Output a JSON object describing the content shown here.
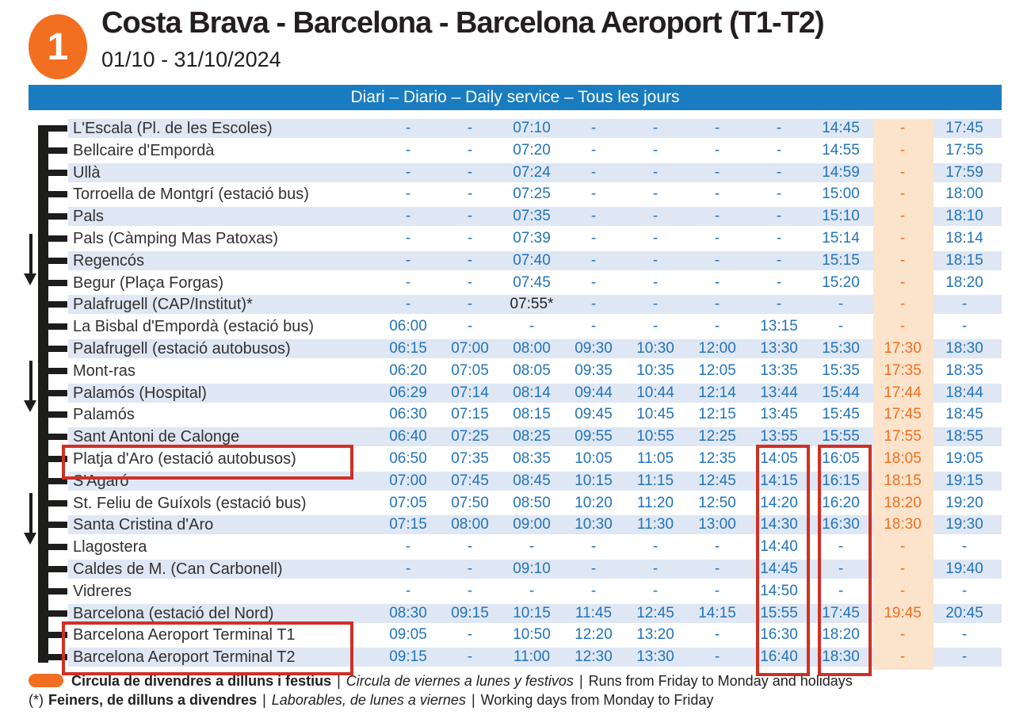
{
  "header": {
    "route_number": "1",
    "title": "Costa Brava - Barcelona - Barcelona Aeroport (T1-T2)",
    "date_range": "01/10 - 31/10/2024"
  },
  "service_bar": {
    "label": "Diari – Diario – Daily service – Tous les jours"
  },
  "colors": {
    "accent_blue": "#1a7cc0",
    "time_blue": "#2274bc",
    "row_stripe": "#dfe7f4",
    "orange": "#f26f21",
    "highlight_column_bg": "#fce3cb",
    "annotation_red": "#cf3026",
    "text_black": "#231f20"
  },
  "timetable": {
    "highlight_column_index": 8,
    "rows": [
      {
        "stop": "L'Escala (Pl. de les Escoles)",
        "times": [
          "-",
          "-",
          "07:10",
          "-",
          "-",
          "-",
          "-",
          "14:45",
          "-",
          "17:45"
        ]
      },
      {
        "stop": "Bellcaire d'Empordà",
        "times": [
          "-",
          "-",
          "07:20",
          "-",
          "-",
          "-",
          "-",
          "14:55",
          "-",
          "17:55"
        ]
      },
      {
        "stop": "Ullà",
        "times": [
          "-",
          "-",
          "07:24",
          "-",
          "-",
          "-",
          "-",
          "14:59",
          "-",
          "17:59"
        ]
      },
      {
        "stop": "Torroella de Montgrí (estació bus)",
        "times": [
          "-",
          "-",
          "07:25",
          "-",
          "-",
          "-",
          "-",
          "15:00",
          "-",
          "18:00"
        ]
      },
      {
        "stop": "Pals",
        "times": [
          "-",
          "-",
          "07:35",
          "-",
          "-",
          "-",
          "-",
          "15:10",
          "-",
          "18:10"
        ]
      },
      {
        "stop": "Pals (Càmping Mas Patoxas)",
        "times": [
          "-",
          "-",
          "07:39",
          "-",
          "-",
          "-",
          "-",
          "15:14",
          "-",
          "18:14"
        ]
      },
      {
        "stop": "Regencós",
        "times": [
          "-",
          "-",
          "07:40",
          "-",
          "-",
          "-",
          "-",
          "15:15",
          "-",
          "18:15"
        ]
      },
      {
        "stop": "Begur (Plaça Forgas)",
        "times": [
          "-",
          "-",
          "07:45",
          "-",
          "-",
          "-",
          "-",
          "15:20",
          "-",
          "18:20"
        ]
      },
      {
        "stop": "Palafrugell (CAP/Institut)*",
        "times": [
          "-",
          "-",
          "07:55*",
          "-",
          "-",
          "-",
          "-",
          "-",
          "-",
          "-"
        ]
      },
      {
        "stop": "La Bisbal d'Empordà (estació bus)",
        "times": [
          "06:00",
          "-",
          "-",
          "-",
          "-",
          "-",
          "13:15",
          "-",
          "-",
          "-"
        ]
      },
      {
        "stop": "Palafrugell (estació autobusos)",
        "times": [
          "06:15",
          "07:00",
          "08:00",
          "09:30",
          "10:30",
          "12:00",
          "13:30",
          "15:30",
          "17:30",
          "18:30"
        ]
      },
      {
        "stop": "Mont-ras",
        "times": [
          "06:20",
          "07:05",
          "08:05",
          "09:35",
          "10:35",
          "12:05",
          "13:35",
          "15:35",
          "17:35",
          "18:35"
        ]
      },
      {
        "stop": "Palamós (Hospital)",
        "times": [
          "06:29",
          "07:14",
          "08:14",
          "09:44",
          "10:44",
          "12:14",
          "13:44",
          "15:44",
          "17:44",
          "18:44"
        ]
      },
      {
        "stop": "Palamós",
        "times": [
          "06:30",
          "07:15",
          "08:15",
          "09:45",
          "10:45",
          "12:15",
          "13:45",
          "15:45",
          "17:45",
          "18:45"
        ]
      },
      {
        "stop": "Sant Antoni de Calonge",
        "times": [
          "06:40",
          "07:25",
          "08:25",
          "09:55",
          "10:55",
          "12:25",
          "13:55",
          "15:55",
          "17:55",
          "18:55"
        ]
      },
      {
        "stop": "Platja d'Aro (estació autobusos)",
        "times": [
          "06:50",
          "07:35",
          "08:35",
          "10:05",
          "11:05",
          "12:35",
          "14:05",
          "16:05",
          "18:05",
          "19:05"
        ]
      },
      {
        "stop": "S'Agaró",
        "times": [
          "07:00",
          "07:45",
          "08:45",
          "10:15",
          "11:15",
          "12:45",
          "14:15",
          "16:15",
          "18:15",
          "19:15"
        ]
      },
      {
        "stop": "St. Feliu de Guíxols (estació bus)",
        "times": [
          "07:05",
          "07:50",
          "08:50",
          "10:20",
          "11:20",
          "12:50",
          "14:20",
          "16:20",
          "18:20",
          "19:20"
        ]
      },
      {
        "stop": "Santa Cristina d'Aro",
        "times": [
          "07:15",
          "08:00",
          "09:00",
          "10:30",
          "11:30",
          "13:00",
          "14:30",
          "16:30",
          "18:30",
          "19:30"
        ]
      },
      {
        "stop": "Llagostera",
        "times": [
          "-",
          "-",
          "-",
          "-",
          "-",
          "-",
          "14:40",
          "-",
          "-",
          "-"
        ]
      },
      {
        "stop": "Caldes de M. (Can Carbonell)",
        "times": [
          "-",
          "-",
          "09:10",
          "-",
          "-",
          "-",
          "14:45",
          "-",
          "-",
          "19:40"
        ]
      },
      {
        "stop": "Vidreres",
        "times": [
          "-",
          "-",
          "-",
          "-",
          "-",
          "-",
          "14:50",
          "-",
          "-",
          "-"
        ]
      },
      {
        "stop": "Barcelona (estació del Nord)",
        "times": [
          "08:30",
          "09:15",
          "10:15",
          "11:45",
          "12:45",
          "14:15",
          "15:55",
          "17:45",
          "19:45",
          "20:45"
        ]
      },
      {
        "stop": "Barcelona Aeroport Terminal T1",
        "times": [
          "09:05",
          "-",
          "10:50",
          "12:20",
          "13:20",
          "-",
          "16:30",
          "18:20",
          "-",
          "-"
        ]
      },
      {
        "stop": "Barcelona Aeroport Terminal T2",
        "times": [
          "09:15",
          "-",
          "11:00",
          "12:30",
          "13:30",
          "-",
          "16:40",
          "18:30",
          "-",
          "-"
        ]
      }
    ]
  },
  "annotations": {
    "boxes": [
      {
        "target": "stop-platja-daro-name"
      },
      {
        "target": "times-column-7"
      },
      {
        "target": "times-column-8"
      },
      {
        "target": "barcelona-airport-terminal-names"
      }
    ]
  },
  "legend": {
    "divider": "|",
    "items": [
      {
        "marker_type": "orange-pill",
        "catalan": "Circula de divendres a dilluns i festius",
        "spanish": "Circula de viernes a lunes y festivos",
        "english": "Runs from Friday to Monday and holidays"
      },
      {
        "marker_type": "asterisk",
        "marker_text": "(*)",
        "catalan": "Feiners, de dilluns a divendres",
        "spanish": "Laborables, de lunes a viernes",
        "english": "Working days from Monday to Friday"
      }
    ]
  }
}
